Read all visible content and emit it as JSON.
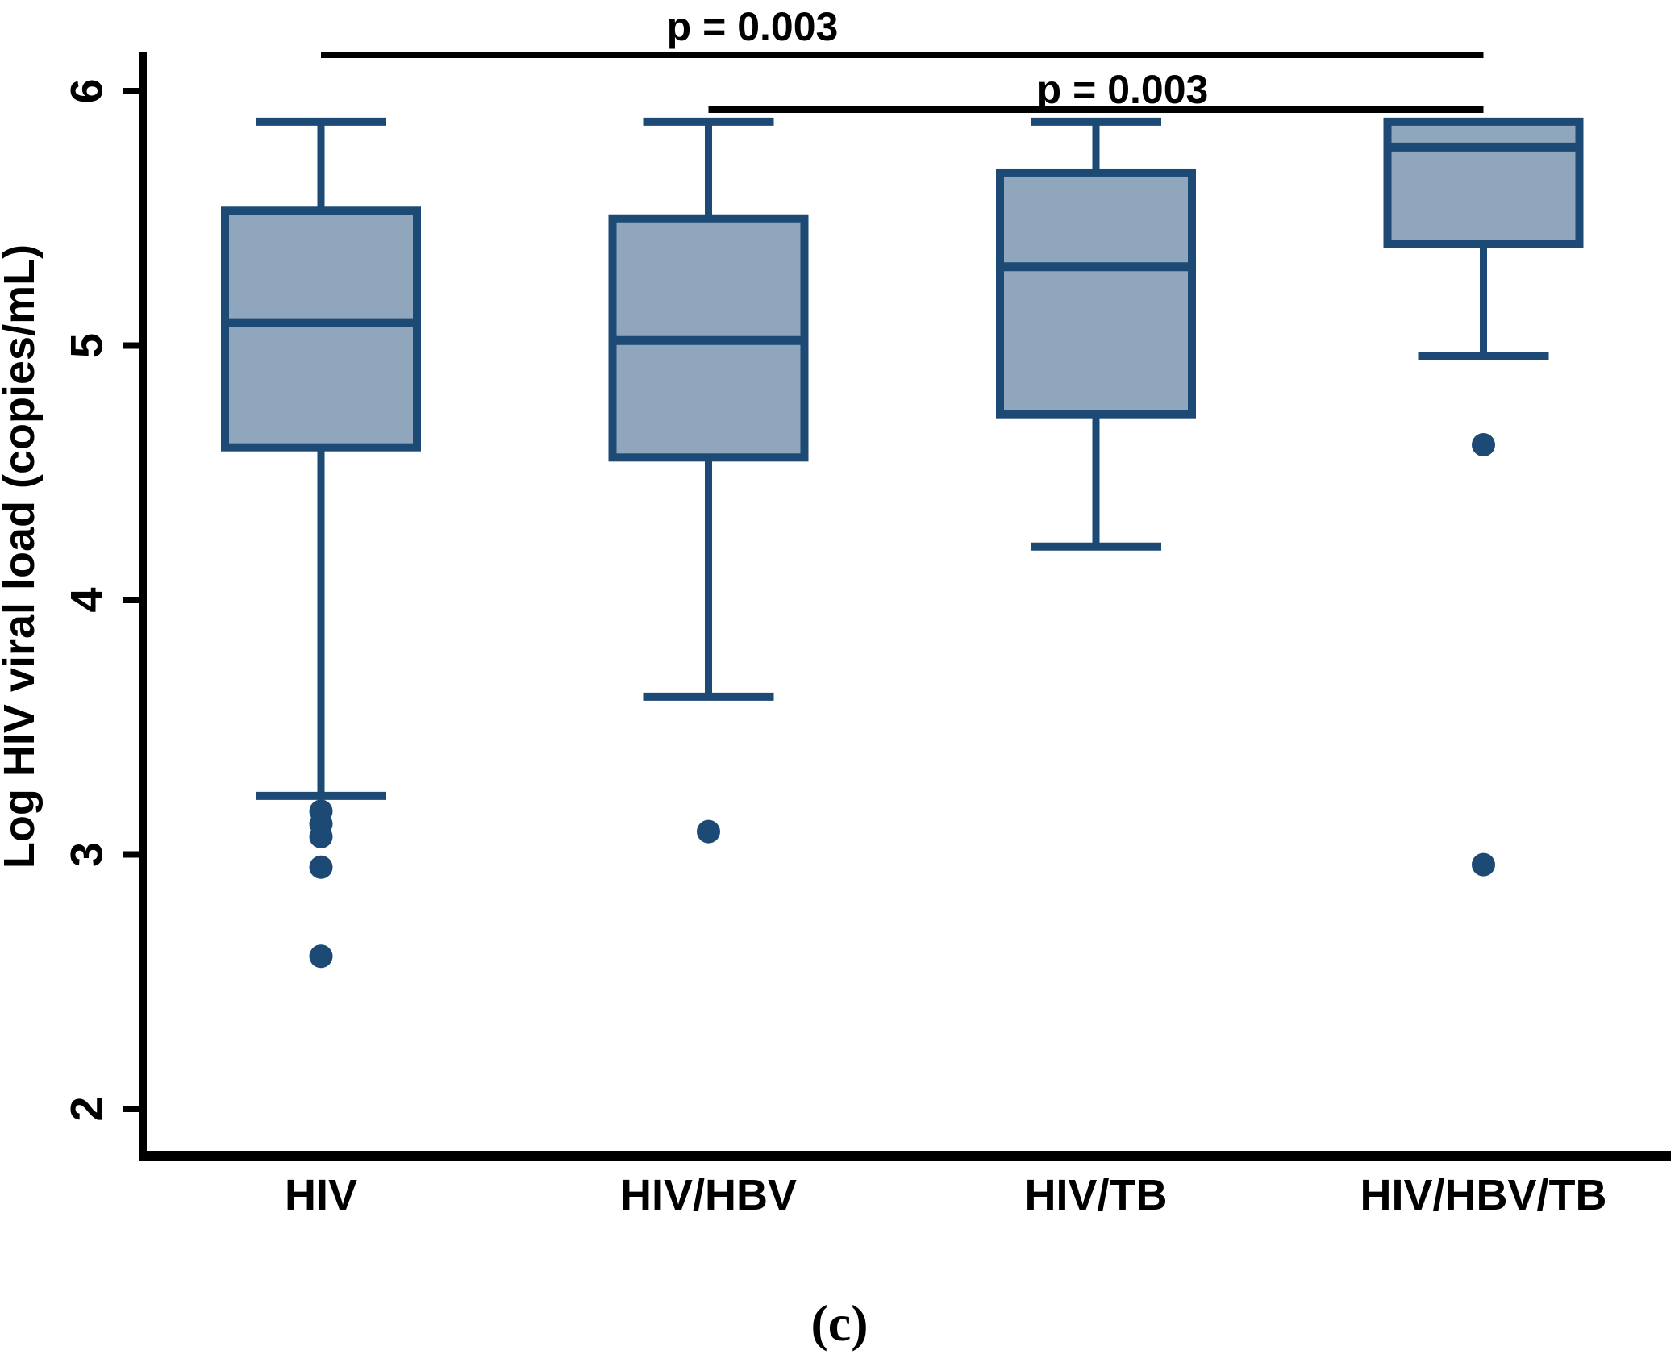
{
  "figure": {
    "caption": "(c)",
    "background": "#ffffff"
  },
  "chart_data": {
    "type": "boxplot",
    "title": "",
    "xlabel": "",
    "ylabel": "Log HIV viral load (copies/mL)",
    "ylim": [
      1.8,
      6.2
    ],
    "yticks": [
      6,
      5,
      4,
      3,
      2
    ],
    "grid": false,
    "legend": null,
    "categories": [
      "HIV",
      "HIV/HBV",
      "HIV/TB",
      "HIV/HBV/TB"
    ],
    "boxes": [
      {
        "category": "HIV",
        "whisker_low": 3.23,
        "q1": 4.6,
        "median": 5.09,
        "q3": 5.53,
        "whisker_high": 5.88,
        "outliers": [
          3.17,
          3.12,
          3.07,
          2.95,
          2.6
        ]
      },
      {
        "category": "HIV/HBV",
        "whisker_low": 3.62,
        "q1": 4.56,
        "median": 5.02,
        "q3": 5.5,
        "whisker_high": 5.88,
        "outliers": [
          3.09
        ]
      },
      {
        "category": "HIV/TB",
        "whisker_low": 4.21,
        "q1": 4.73,
        "median": 5.31,
        "q3": 5.68,
        "whisker_high": 5.88,
        "outliers": []
      },
      {
        "category": "HIV/HBV/TB",
        "whisker_low": 4.96,
        "q1": 5.4,
        "median": 5.78,
        "q3": 5.88,
        "whisker_high": 5.88,
        "outliers": [
          4.61,
          2.96
        ]
      }
    ],
    "significance_bars": [
      {
        "from": "HIV",
        "to": "HIV/HBV/TB",
        "label": "p = 0.003"
      },
      {
        "from": "HIV/HBV",
        "to": "HIV/HBV/TB",
        "label": "p = 0.003"
      }
    ],
    "colors": {
      "box_fill": "#8fa6bc",
      "box_stroke": "#1c4a75",
      "sig_line": "#000000",
      "axis": "#000000",
      "text": "#000000"
    }
  }
}
